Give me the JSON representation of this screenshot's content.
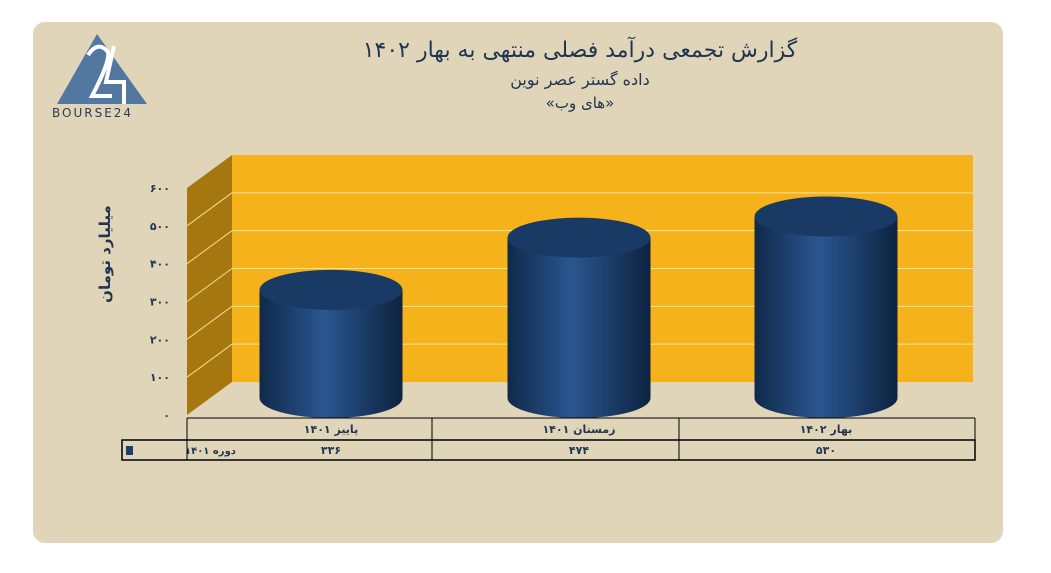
{
  "logo": {
    "text": "BOURSE24"
  },
  "chart_data": {
    "type": "bar",
    "style": "3d-cylinder",
    "title": "گزارش تجمعی درآمد فصلی منتهی به بهار ۱۴۰۲",
    "subtitle": "داده گستر عصر نوین",
    "subtitle2": "«های وب»",
    "ylabel": "میلیارد تومان",
    "ylim": [
      0,
      600
    ],
    "yticks": [
      0,
      100,
      200,
      300,
      400,
      500,
      600
    ],
    "ytick_labels": [
      "۰",
      "۱۰۰",
      "۲۰۰",
      "۳۰۰",
      "۴۰۰",
      "۵۰۰",
      "۶۰۰"
    ],
    "categories": [
      "پاییز ۱۴۰۱",
      "زمستان ۱۴۰۱",
      "بهار ۱۴۰۲"
    ],
    "series": [
      {
        "name": "دوره ۱۴۰۱",
        "values": [
          336,
          474,
          530
        ],
        "labels": [
          "۳۳۶",
          "۴۷۴",
          "۵۳۰"
        ]
      }
    ],
    "grid": true,
    "colors": {
      "bar": "#1d3f6e",
      "back_wall": "#f6b21a",
      "side_wall": "#a6770f",
      "background": "#e0d5b9",
      "text": "#1f3550"
    }
  }
}
